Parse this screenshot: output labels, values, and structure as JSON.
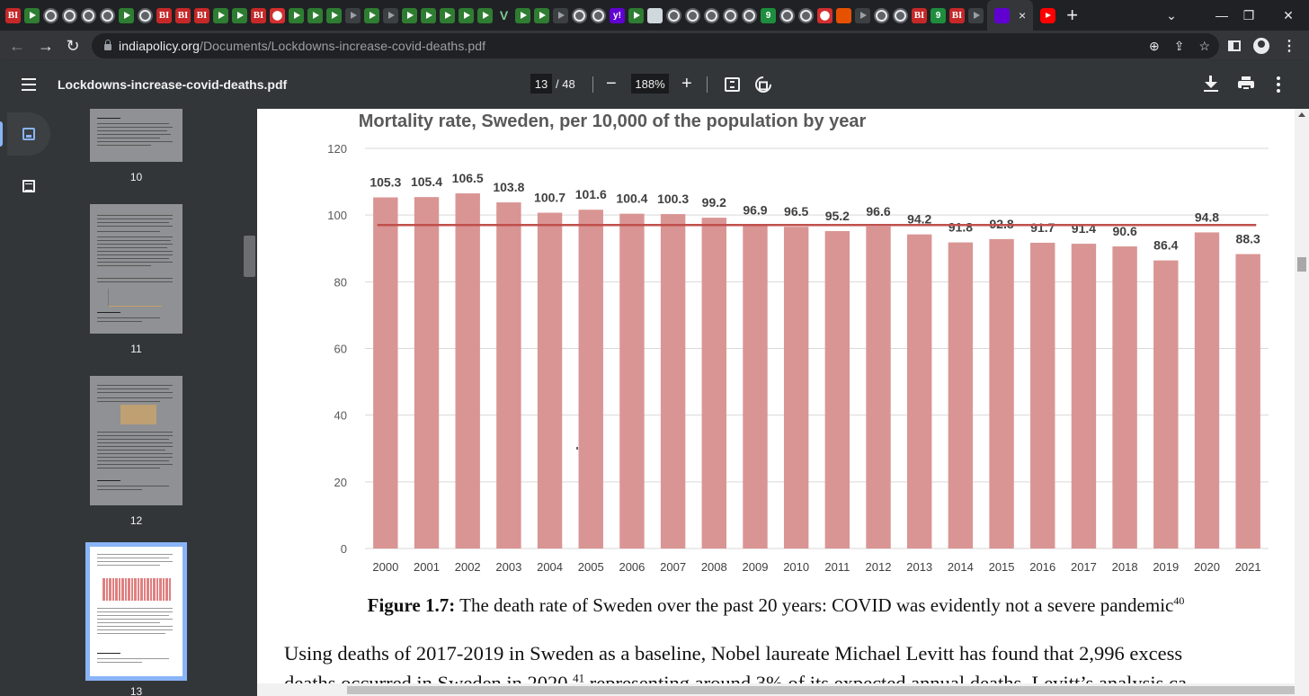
{
  "browser": {
    "tab_favicons": [
      "bi",
      "play",
      "globe",
      "globe",
      "globe",
      "globe",
      "play",
      "globe",
      "bi",
      "bi",
      "bi",
      "play",
      "play",
      "bi",
      "red",
      "play",
      "play",
      "play",
      "dark",
      "play",
      "dark",
      "play",
      "play",
      "play",
      "play",
      "play",
      "vee",
      "play",
      "play",
      "dark",
      "globe",
      "globe",
      "yahoo",
      "play",
      "sheet",
      "globe",
      "globe",
      "globe",
      "globe",
      "globe",
      "green9",
      "globe",
      "globe",
      "red",
      "orange",
      "dark",
      "globe",
      "globe",
      "bi",
      "green9",
      "bi",
      "dark"
    ],
    "active_tab_close": "×",
    "new_tab": "+",
    "url_host": "indiapolicy.org",
    "url_path": "/Documents/Lockdowns-increase-covid-deaths.pdf"
  },
  "pdf": {
    "title": "Lockdowns-increase-covid-deaths.pdf",
    "current_page": "13",
    "total_pages": "/ 48",
    "zoom": "188%"
  },
  "thumbnails": [
    {
      "label": "10"
    },
    {
      "label": "11"
    },
    {
      "label": "12"
    },
    {
      "label": "13"
    }
  ],
  "chart_data": {
    "type": "bar",
    "title": "Mortality rate, Sweden, per 10,000 of the population by year",
    "categories": [
      "2000",
      "2001",
      "2002",
      "2003",
      "2004",
      "2005",
      "2006",
      "2007",
      "2008",
      "2009",
      "2010",
      "2011",
      "2012",
      "2013",
      "2014",
      "2015",
      "2016",
      "2017",
      "2018",
      "2019",
      "2020",
      "2021"
    ],
    "values": [
      105.3,
      105.4,
      106.5,
      103.8,
      100.7,
      101.6,
      100.4,
      100.3,
      99.2,
      96.9,
      96.5,
      95.2,
      96.6,
      94.2,
      91.8,
      92.8,
      91.7,
      91.4,
      90.6,
      86.4,
      94.8,
      88.3
    ],
    "value_labels": [
      "105.3",
      "105.4",
      "106.5",
      "103.8",
      "100.7",
      "101.6",
      "100.4",
      "100.3",
      "99.2",
      "96.9",
      "96.5",
      "95.2",
      "96.6",
      "94.2",
      "91.8",
      "92.8",
      "91.7",
      "91.4",
      "90.6",
      "86.4",
      "94.8",
      "88.3"
    ],
    "yticks": [
      "0",
      "20",
      "40",
      "60",
      "80",
      "100",
      "120"
    ],
    "ylim": [
      0,
      120
    ],
    "reference_line": 97,
    "bar_color": "#d99594",
    "line_color": "#c0504d",
    "xlabel": "",
    "ylabel": ""
  },
  "caption": {
    "label": "Figure 1.7:",
    "text": " The death rate of Sweden over the past 20 years: COVID was evidently not a severe pandemic",
    "ref": "40"
  },
  "body": {
    "line1": "Using deaths of 2017-2019 in Sweden as a baseline, Nobel laureate Michael Levitt has found that 2,996 excess",
    "line2a": "deaths occurred in Sweden in 2020,",
    "line2ref": "41",
    "line2b": " representing around 3% of its expected annual deaths. Levitt’s analysis ca"
  }
}
